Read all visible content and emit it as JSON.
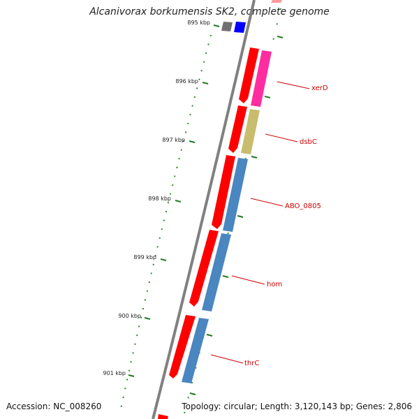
{
  "title": "Alcanivorax borkumensis SK2, complete genome",
  "accession_text": "Accession: NC_008260",
  "summary_text": "Topology: circular; Length: 3,120,143 bp; Genes: 2,806",
  "ruler": [
    "895 kbp",
    "896 kbp",
    "897 kbp",
    "898 kbp",
    "899 kbp",
    "900 kbp",
    "901 kbp"
  ],
  "gene_labels": [
    "xerD",
    "dsbC",
    "ABO_0805",
    "hom",
    "thrC"
  ],
  "colors": {
    "backbone": "#808080",
    "forward_feature": "#ff0000",
    "xerD": "#ff2da0",
    "dsbC": "#c8bc6e",
    "blue_genes": "#4a86c0",
    "small_blue": "#0000ff",
    "small_gray": "#707070",
    "tick_dotted": "#2a8a2a",
    "label_text": "#cc0000"
  }
}
